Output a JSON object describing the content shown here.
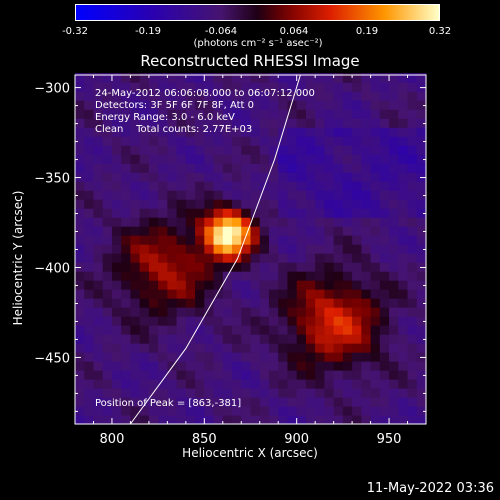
{
  "colorbar": {
    "ticks": [
      "-0.32",
      "-0.19",
      "-0.064",
      "0.064",
      "0.19",
      "0.32"
    ],
    "unit": "(photons cm⁻² s⁻¹ asec⁻²)"
  },
  "annotations": {
    "line1": "24-May-2012 06:06:08.000 to 06:07:12.000",
    "line2": "Detectors: 3F 5F 6F 7F 8F, Att 0",
    "line3": "Energy Range: 3.0 - 6.0 keV",
    "line4": "Clean    Total counts: 2.77E+03",
    "peak": "Position of Peak = [863,-381]"
  },
  "datestamp": "11-May-2022 03:36",
  "chart_data": {
    "type": "heatmap",
    "title": "Reconstructed RHESSI Image",
    "xlabel": "Heliocentric X (arcsec)",
    "ylabel": "Heliocentric Y (arcsec)",
    "xlim": [
      780,
      970
    ],
    "ylim": [
      -487,
      -293
    ],
    "x_ticks": [
      800,
      850,
      900,
      950
    ],
    "y_ticks": [
      -300,
      -350,
      -400,
      -450
    ],
    "color_range": [
      -0.32,
      0.32
    ],
    "peak": [
      863,
      -381
    ],
    "sources": [
      {
        "x": 863,
        "y": -381,
        "intensity": 0.32
      },
      {
        "x": 920,
        "y": -430,
        "intensity": 0.12
      },
      {
        "x": 828,
        "y": -400,
        "intensity": 0.08
      }
    ],
    "limb_curve": [
      [
        810,
        -487
      ],
      [
        840,
        -445
      ],
      [
        868,
        -395
      ],
      [
        888,
        -340
      ],
      [
        902,
        -293
      ]
    ],
    "colors": {
      "limb": "#ffffff",
      "axes": "#ffffff",
      "background": "#000000"
    }
  }
}
